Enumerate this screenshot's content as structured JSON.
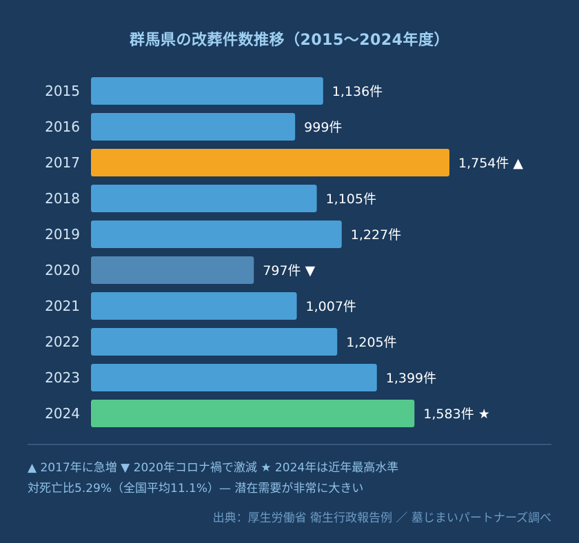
{
  "chart_data": {
    "type": "bar",
    "orientation": "horizontal",
    "title": "群馬県の改葬件数推移（2015〜2024年度）",
    "xlabel": "",
    "ylabel": "",
    "unit": "件",
    "xlim": [
      0,
      1754
    ],
    "grid": false,
    "categories": [
      "2015",
      "2016",
      "2017",
      "2018",
      "2019",
      "2020",
      "2021",
      "2022",
      "2023",
      "2024"
    ],
    "values": [
      1136,
      999,
      1754,
      1105,
      1227,
      797,
      1007,
      1205,
      1399,
      1583
    ],
    "value_labels": [
      "1,136件",
      "999件",
      "1,754件",
      "1,105件",
      "1,227件",
      "797件",
      "1,007件",
      "1,205件",
      "1,399件",
      "1,583件"
    ],
    "markers": [
      "",
      "",
      "▲",
      "",
      "",
      "▼",
      "",
      "",
      "",
      "★"
    ],
    "colors": [
      "#4a9fd6",
      "#4a9fd6",
      "#f4a623",
      "#4a9fd6",
      "#4a9fd6",
      "#5089b5",
      "#4a9fd6",
      "#4a9fd6",
      "#4a9fd6",
      "#55c98c"
    ]
  },
  "colors": {
    "background": "#1b3a5c",
    "title": "#9fd0f2",
    "default_bar": "#4a9fd6",
    "highlight_increase": "#f4a623",
    "highlight_decrease": "#5089b5",
    "highlight_record": "#55c98c"
  },
  "notes": {
    "line1": "▲ 2017年に急増 ▼ 2020年コロナ禍で激減 ★ 2024年は近年最高水準",
    "line2": "対死亡比5.29%（全国平均11.1%）— 潜在需要が非常に大きい"
  },
  "source": "出典：厚生労働省 衛生行政報告例 ／ 墓じまいパートナーズ調べ"
}
